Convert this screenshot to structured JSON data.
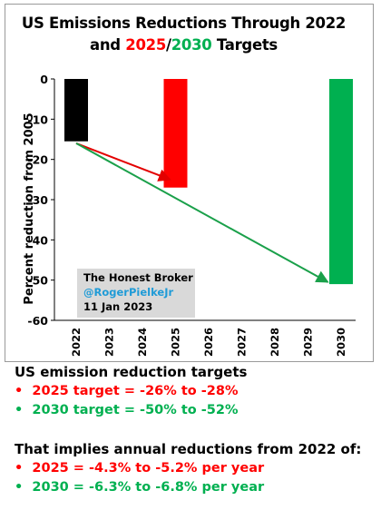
{
  "title": {
    "line1": "US Emissions Reductions Through 2022",
    "line2_prefix": "and ",
    "line2_red": "2025",
    "line2_sep": "/",
    "line2_green": "2030",
    "line2_suffix": " Targets"
  },
  "colors": {
    "black": "#000000",
    "red": "#ff0000",
    "green": "#00b050",
    "arrow_red": "#e30000",
    "arrow_green": "#1aa04a",
    "handle": "#1f9bd7"
  },
  "chart_data": {
    "type": "bar",
    "ylabel": "Percent reduction from 2005",
    "ylim": [
      -60,
      0
    ],
    "yticks": [
      0,
      -10,
      -20,
      -30,
      -40,
      -50,
      -60
    ],
    "categories": [
      "2022",
      "2023",
      "2024",
      "2025",
      "2026",
      "2027",
      "2028",
      "2029",
      "2030"
    ],
    "bars": [
      {
        "x": "2022",
        "value": -15.5,
        "color": "black"
      },
      {
        "x": "2025",
        "value": -27,
        "color": "red"
      },
      {
        "x": "2030",
        "value": -51,
        "color": "green"
      }
    ],
    "arrows": [
      {
        "from": {
          "x": "2022",
          "y": -16
        },
        "to": {
          "x": "2025",
          "y": -25
        },
        "color": "arrow_red"
      },
      {
        "from": {
          "x": "2022",
          "y": -16
        },
        "to": {
          "x": "2029.6",
          "y": -50.5
        },
        "color": "arrow_green"
      }
    ],
    "grid": false
  },
  "note": {
    "line1": "The Honest Broker",
    "line2": "@RogerPielkeJr",
    "line3": "11 Jan 2023"
  },
  "footer": {
    "heading1": "US emission reduction targets",
    "items1": [
      {
        "bullet": "•",
        "text": "2025 target = -26% to -28%",
        "color": "red"
      },
      {
        "bullet": "•",
        "text": "2030 target = -50% to -52%",
        "color": "green"
      }
    ],
    "heading2": "That implies annual reductions from 2022 of:",
    "items2": [
      {
        "bullet": "•",
        "text": "2025 = -4.3% to -5.2% per year",
        "color": "red"
      },
      {
        "bullet": "•",
        "text": "2030 = -6.3% to -6.8% per year",
        "color": "green"
      }
    ]
  }
}
